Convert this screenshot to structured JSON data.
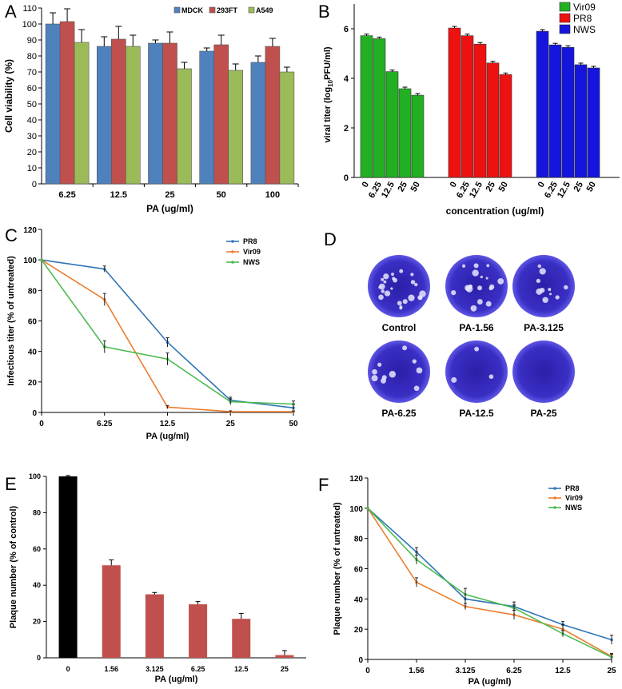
{
  "panel_labels": {
    "a": "A",
    "b": "B",
    "c": "C",
    "d": "D",
    "e": "E",
    "f": "F"
  },
  "colors": {
    "mdck": "#4f81bd",
    "t293ft": "#c0504d",
    "a549": "#9bbb59",
    "vir09_bar": "#22b022",
    "pr8_bar": "#ee1111",
    "nws_bar": "#1515dd",
    "pr8_line": "#2e75b6",
    "vir09_line": "#ed7d31",
    "nws_line": "#4cbb50",
    "black_bar": "#000000",
    "red_bar": "#c0504d",
    "plaque_dish": "#3a2fc4"
  },
  "panel_d": {
    "wells": [
      {
        "label": "Control"
      },
      {
        "label": "PA-1.56"
      },
      {
        "label": "PA-3.125"
      },
      {
        "label": "PA-6.25"
      },
      {
        "label": "PA-12.5"
      },
      {
        "label": "PA-25"
      }
    ]
  },
  "chart_data": [
    {
      "id": "A",
      "type": "bar",
      "title": "",
      "xlabel": "PA (ug/ml)",
      "ylabel": "Cell viability (%)",
      "categories": [
        "6.25",
        "12.5",
        "25",
        "50",
        "100"
      ],
      "ylim": [
        0,
        110
      ],
      "yticks": [
        0,
        10,
        20,
        30,
        40,
        50,
        60,
        70,
        80,
        90,
        100,
        110
      ],
      "legend_position": "top-right",
      "series": [
        {
          "name": "MDCK",
          "values": [
            100,
            86,
            88,
            83,
            76
          ],
          "errors": [
            7,
            6,
            2,
            2,
            4
          ],
          "color_key": "mdck"
        },
        {
          "name": "293FT",
          "values": [
            101.5,
            90.5,
            88,
            87,
            86
          ],
          "errors": [
            8,
            8,
            7,
            6,
            5
          ],
          "color_key": "t293ft"
        },
        {
          "name": "A549",
          "values": [
            88.5,
            86,
            72,
            71,
            70
          ],
          "errors": [
            8,
            7,
            4,
            4,
            3
          ],
          "color_key": "a549"
        }
      ]
    },
    {
      "id": "B",
      "type": "bar",
      "title": "",
      "xlabel": "concentration (ug/ml)",
      "ylabel_prefix": "viral titer (log",
      "ylabel_sub": "10",
      "ylabel_suffix": "PFU/ml)",
      "categories": [
        "0",
        "6.25",
        "12.5",
        "25",
        "50"
      ],
      "ylim": [
        0,
        7
      ],
      "yticks": [
        0,
        2,
        4,
        6
      ],
      "legend_position": "top-right",
      "series": [
        {
          "name": "Vir09",
          "values": [
            5.72,
            5.6,
            4.27,
            3.58,
            3.32
          ],
          "color_key": "vir09_bar"
        },
        {
          "name": "PR8",
          "values": [
            6.03,
            5.72,
            5.38,
            4.62,
            4.15
          ],
          "color_key": "pr8_bar"
        },
        {
          "name": "NWS",
          "values": [
            5.9,
            5.35,
            5.25,
            4.55,
            4.42
          ],
          "color_key": "nws_bar"
        }
      ]
    },
    {
      "id": "C",
      "type": "line",
      "title": "",
      "xlabel": "PA (ug/ml)",
      "ylabel": "Infectious titer (% of untreated)",
      "categories": [
        "0",
        "6.25",
        "12.5",
        "25",
        "50"
      ],
      "ylim": [
        0,
        120
      ],
      "yticks": [
        0,
        20,
        40,
        60,
        80,
        100,
        120
      ],
      "legend_position": "top-right",
      "series": [
        {
          "name": "PR8",
          "values": [
            100,
            94,
            46,
            8,
            3
          ],
          "errors": [
            0,
            2,
            3,
            2,
            2
          ],
          "color_key": "pr8_line"
        },
        {
          "name": "Vir09",
          "values": [
            100,
            74,
            3.5,
            0.5,
            0.5
          ],
          "errors": [
            0,
            4,
            1,
            0.5,
            0.5
          ],
          "color_key": "vir09_line"
        },
        {
          "name": "NWS",
          "values": [
            100,
            43,
            35,
            7,
            5.5
          ],
          "errors": [
            0,
            4,
            4,
            2,
            2
          ],
          "color_key": "nws_line"
        }
      ]
    },
    {
      "id": "E",
      "type": "bar",
      "title": "",
      "xlabel": "PA (ug/ml)",
      "ylabel": "Plaque number (% of control)",
      "categories": [
        "0",
        "1.56",
        "3.125",
        "6.25",
        "12.5",
        "25"
      ],
      "ylim": [
        0,
        100
      ],
      "yticks": [
        0,
        20,
        40,
        60,
        80,
        100
      ],
      "series": [
        {
          "name": "Plaque number",
          "values": [
            100,
            51,
            35,
            29.5,
            21.5,
            1.5
          ],
          "errors": [
            0.5,
            3,
            1,
            1.5,
            3,
            2.5
          ]
        }
      ]
    },
    {
      "id": "F",
      "type": "line",
      "title": "",
      "xlabel": "PA (ug/ml)",
      "ylabel": "Plaque number (% of untreated)",
      "categories": [
        "0",
        "1.56",
        "3.125",
        "6.25",
        "12.5",
        "25"
      ],
      "ylim": [
        0,
        120
      ],
      "yticks": [
        0,
        20,
        40,
        60,
        80,
        100,
        120
      ],
      "legend_position": "top-right",
      "series": [
        {
          "name": "PR8",
          "values": [
            100,
            71,
            40,
            35,
            23,
            13
          ],
          "errors": [
            0,
            3,
            3,
            3,
            2,
            3
          ],
          "color_key": "pr8_line"
        },
        {
          "name": "Vir09",
          "values": [
            100,
            51,
            35,
            29.5,
            20,
            2
          ],
          "errors": [
            0,
            3,
            2,
            3,
            3,
            2
          ],
          "color_key": "vir09_line"
        },
        {
          "name": "NWS",
          "values": [
            100,
            66,
            43,
            34,
            17,
            1.5
          ],
          "errors": [
            0,
            3,
            4,
            2,
            2,
            2
          ],
          "color_key": "nws_line"
        }
      ]
    }
  ]
}
